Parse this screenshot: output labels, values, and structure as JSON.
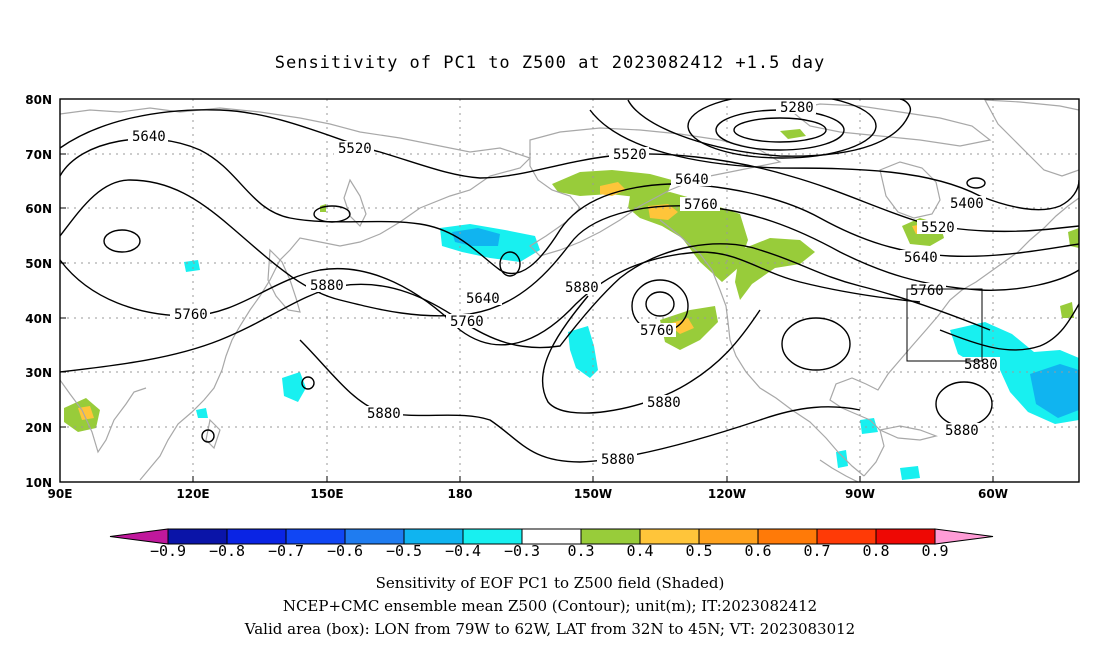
{
  "title": "Sensitivity of PC1 to Z500 at 2023082412 +1.5 day",
  "map": {
    "lat_labels": [
      "80N",
      "70N",
      "60N",
      "50N",
      "40N",
      "30N",
      "20N",
      "10N"
    ],
    "lon_labels": [
      "90E",
      "120E",
      "150E",
      "180",
      "150W",
      "120W",
      "90W",
      "60W"
    ],
    "contour_labels": [
      "5280",
      "5400",
      "5520",
      "5520",
      "5520",
      "5640",
      "5640",
      "5640",
      "5640",
      "5760",
      "5760",
      "5760",
      "5760",
      "5760",
      "5880",
      "5880",
      "5880",
      "5880",
      "5880",
      "5880"
    ],
    "valid_box": {
      "lon_range": [
        "79W",
        "62W"
      ],
      "lat_range": [
        "32N",
        "45N"
      ]
    }
  },
  "colorbar": {
    "labels": [
      "−0.9",
      "−0.8",
      "−0.7",
      "−0.6",
      "−0.5",
      "−0.4",
      "−0.3",
      "0.3",
      "0.4",
      "0.5",
      "0.6",
      "0.7",
      "0.8",
      "0.9"
    ],
    "colors": {
      "lower_arrow": "#c0189c",
      "bins": [
        "#0a14a8",
        "#0a24e4",
        "#1046f4",
        "#1f7cf0",
        "#10b4f0",
        "#18f0f0",
        "#ffffff",
        "#98cc3a",
        "#ffc53a",
        "#ffa21e",
        "#ff7a08",
        "#ff3a06",
        "#ee0804"
      ],
      "upper_arrow": "#ff9cd6"
    }
  },
  "caption": {
    "line1": "Sensitivity of EOF PC1 to Z500 field (Shaded)",
    "line2": "NCEP+CMC ensemble mean Z500 (Contour); unit(m); IT:2023082412",
    "line3": "Valid area (box): LON from 79W to 62W, LAT from 32N to 45N; VT: 2023083012"
  },
  "palette": {
    "green": "#98cc3a",
    "yellow": "#ffc53a",
    "cyan": "#18f0f0",
    "lightblue": "#10b4f0",
    "coast": "#a8a8a8"
  }
}
